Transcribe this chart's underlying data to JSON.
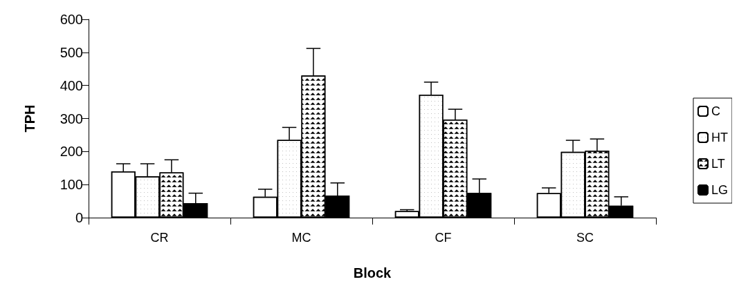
{
  "chart_data": {
    "type": "bar",
    "xlabel": "Block",
    "ylabel": "TPH",
    "categories": [
      "CR",
      "MC",
      "CF",
      "SC"
    ],
    "series": [
      {
        "name": "C",
        "color": "#ffffff",
        "values": [
          140,
          63,
          20,
          74
        ],
        "errors": [
          [
            140,
            163
          ],
          [
            63,
            86
          ],
          [
            20,
            24
          ],
          [
            74,
            90
          ]
        ]
      },
      {
        "name": "HT",
        "color": "#ffffff",
        "values": [
          125,
          235,
          372,
          199
        ],
        "errors": [
          [
            125,
            163
          ],
          [
            235,
            273
          ],
          [
            372,
            410
          ],
          [
            199,
            234
          ]
        ]
      },
      {
        "name": "LT",
        "color": "#ffffff",
        "values": [
          137,
          430,
          297,
          203
        ],
        "errors": [
          [
            137,
            175
          ],
          [
            430,
            512
          ],
          [
            297,
            328
          ],
          [
            203,
            238
          ]
        ]
      },
      {
        "name": "LG",
        "color": "#000000",
        "values": [
          44,
          67,
          75,
          36
        ],
        "errors": [
          [
            44,
            74
          ],
          [
            67,
            105
          ],
          [
            75,
            117
          ],
          [
            36,
            63
          ]
        ]
      }
    ],
    "ylim": [
      0,
      600
    ],
    "yticks": [
      0,
      100,
      200,
      300,
      400,
      500,
      600
    ],
    "grid": false,
    "legend": "right"
  }
}
